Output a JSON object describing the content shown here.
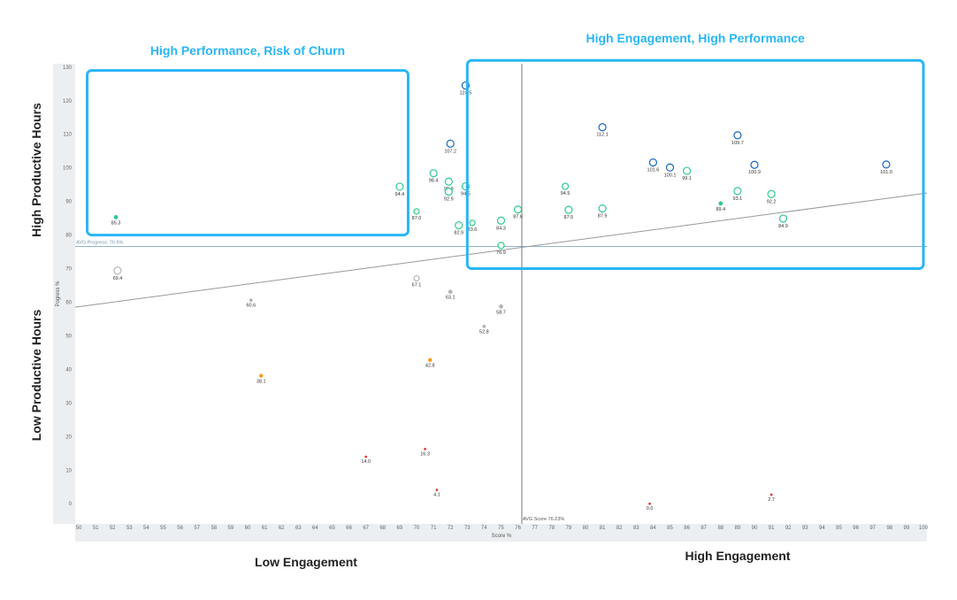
{
  "chart_data": {
    "type": "scatter",
    "xlabel": "Score %",
    "ylabel": "Pogress %",
    "xlim": [
      50,
      100
    ],
    "ylim": [
      -6,
      131
    ],
    "x_ticks": [
      50,
      51,
      52,
      53,
      54,
      55,
      56,
      57,
      58,
      59,
      60,
      61,
      62,
      63,
      64,
      65,
      66,
      67,
      68,
      69,
      70,
      71,
      72,
      73,
      74,
      75,
      76,
      77,
      78,
      79,
      80,
      81,
      82,
      83,
      84,
      85,
      86,
      87,
      88,
      89,
      90,
      91,
      92,
      93,
      94,
      95,
      96,
      97,
      98,
      99,
      100
    ],
    "y_ticks": [
      0,
      10,
      20,
      30,
      40,
      50,
      60,
      70,
      80,
      90,
      100,
      110,
      120,
      130
    ],
    "avg_progress": {
      "value": 76.6,
      "label": "AVG Progress: 76.6%"
    },
    "avg_score": {
      "value": 76.23,
      "label": "AVG Score 76.23%"
    },
    "trendline": {
      "x": [
        50,
        100
      ],
      "y": [
        58.5,
        92.5
      ]
    },
    "quadrants": [
      {
        "title": "High Performance, Risk of Churn",
        "x": [
          50.5,
          69.5
        ],
        "y": [
          80,
          129
        ]
      },
      {
        "title": "High Engagement, High Performance",
        "x": [
          73,
          100
        ],
        "y": [
          70,
          132
        ]
      }
    ],
    "side_labels": {
      "high_hours": "High Productive Hours",
      "low_hours": "Low Productive Hours",
      "low_engagement": "Low Engagement",
      "high_engagement": "High Engagement"
    },
    "colors": {
      "blue": "#1565c0",
      "green": "#2ecc8b",
      "gray": "#b5b5b5",
      "orange": "#f59b23",
      "red": "#e53935",
      "quadrant": "#29b6f6",
      "trend": "#999999",
      "avg": "#90b4d0"
    },
    "points": [
      {
        "x": 52.2,
        "y": 85.3,
        "label": "85.3",
        "color": "green",
        "r": 2
      },
      {
        "x": 52.3,
        "y": 69.4,
        "label": "69.4",
        "color": "gray",
        "r": 4
      },
      {
        "x": 60.2,
        "y": 60.6,
        "label": "60.6",
        "color": "gray",
        "r": 1.5
      },
      {
        "x": 60.8,
        "y": 38.1,
        "label": "38.1",
        "color": "orange",
        "r": 1.8
      },
      {
        "x": 67,
        "y": 14,
        "label": "14.0",
        "color": "red",
        "r": 1
      },
      {
        "x": 69,
        "y": 94.4,
        "label": "94.4",
        "color": "green",
        "r": 4
      },
      {
        "x": 70,
        "y": 87,
        "label": "87.0",
        "color": "green",
        "r": 3
      },
      {
        "x": 70,
        "y": 67.1,
        "label": "67.1",
        "color": "gray",
        "r": 3
      },
      {
        "x": 70.5,
        "y": 16.3,
        "label": "16.3",
        "color": "red",
        "r": 1
      },
      {
        "x": 70.8,
        "y": 42.8,
        "label": "42.8",
        "color": "orange",
        "r": 1.8
      },
      {
        "x": 71,
        "y": 98.4,
        "label": "98.4",
        "color": "green",
        "r": 4
      },
      {
        "x": 71.2,
        "y": 4.1,
        "label": "4.1",
        "color": "red",
        "r": 1
      },
      {
        "x": 71.9,
        "y": 95.9,
        "label": "95.9",
        "color": "green",
        "r": 4
      },
      {
        "x": 71.9,
        "y": 92.9,
        "label": "92.9",
        "color": "green",
        "r": 4
      },
      {
        "x": 72,
        "y": 107.2,
        "label": "107.2",
        "color": "blue",
        "r": 4
      },
      {
        "x": 72,
        "y": 63.1,
        "label": "63.1",
        "color": "gray",
        "r": 2
      },
      {
        "x": 72.5,
        "y": 82.9,
        "label": "82.9",
        "color": "green",
        "r": 4
      },
      {
        "x": 72.9,
        "y": 124.5,
        "label": "124.5",
        "color": "blue",
        "r": 4
      },
      {
        "x": 72.9,
        "y": 94.5,
        "label": "94.5",
        "color": "green",
        "r": 4
      },
      {
        "x": 73.3,
        "y": 83.6,
        "label": "83.6",
        "color": "green",
        "r": 3
      },
      {
        "x": 74,
        "y": 52.8,
        "label": "52.8",
        "color": "gray",
        "r": 1.5
      },
      {
        "x": 75,
        "y": 84.3,
        "label": "84.3",
        "color": "green",
        "r": 4
      },
      {
        "x": 75,
        "y": 76.9,
        "label": "76.9",
        "color": "green",
        "r": 3.5
      },
      {
        "x": 75,
        "y": 58.7,
        "label": "58.7",
        "color": "gray",
        "r": 2
      },
      {
        "x": 76,
        "y": 87.6,
        "label": "87.6",
        "color": "green",
        "r": 4
      },
      {
        "x": 78.8,
        "y": 94.5,
        "label": "94.5",
        "color": "green",
        "r": 3.5
      },
      {
        "x": 79,
        "y": 87.5,
        "label": "87.5",
        "color": "green",
        "r": 4
      },
      {
        "x": 81,
        "y": 112.1,
        "label": "112.1",
        "color": "blue",
        "r": 4
      },
      {
        "x": 81,
        "y": 87.9,
        "label": "87.9",
        "color": "green",
        "r": 4
      },
      {
        "x": 83.8,
        "y": 0,
        "label": "0.0",
        "color": "red",
        "r": 1
      },
      {
        "x": 84,
        "y": 101.6,
        "label": "101.6",
        "color": "blue",
        "r": 4
      },
      {
        "x": 85,
        "y": 100.1,
        "label": "100.1",
        "color": "blue",
        "r": 4
      },
      {
        "x": 86,
        "y": 99.1,
        "label": "99.1",
        "color": "green",
        "r": 4
      },
      {
        "x": 88,
        "y": 89.4,
        "label": "89.4",
        "color": "green",
        "r": 2
      },
      {
        "x": 89,
        "y": 109.7,
        "label": "109.7",
        "color": "blue",
        "r": 4
      },
      {
        "x": 89,
        "y": 93.1,
        "label": "93.1",
        "color": "green",
        "r": 4
      },
      {
        "x": 90,
        "y": 100.9,
        "label": "100.9",
        "color": "blue",
        "r": 4
      },
      {
        "x": 91,
        "y": 92.2,
        "label": "92.2",
        "color": "green",
        "r": 4
      },
      {
        "x": 91,
        "y": 2.7,
        "label": "2.7",
        "color": "red",
        "r": 1
      },
      {
        "x": 91.7,
        "y": 84.9,
        "label": "84.9",
        "color": "green",
        "r": 4
      },
      {
        "x": 97.8,
        "y": 101,
        "label": "101.0",
        "color": "blue",
        "r": 4
      }
    ]
  }
}
